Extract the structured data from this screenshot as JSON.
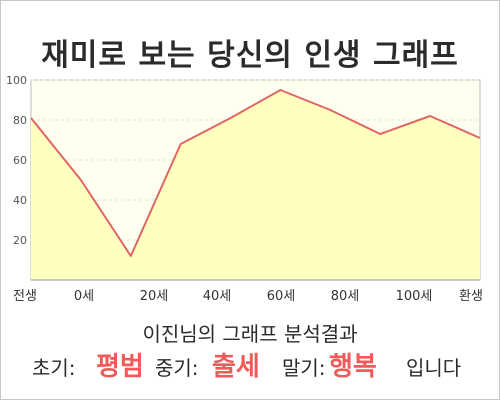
{
  "title": "재미로 보는 당신의 인생 그래프",
  "chart_data": {
    "type": "area",
    "x_labels": [
      "전생",
      "0세",
      "20세",
      "40세",
      "60세",
      "80세",
      "100세",
      "환생"
    ],
    "y_ticks": [
      20,
      40,
      60,
      80,
      100
    ],
    "ylim": [
      0,
      100
    ],
    "points": [
      81,
      50,
      12,
      68,
      81,
      95,
      85,
      73,
      82,
      71
    ],
    "colors": {
      "line": "#e06666",
      "fill": "#ffffc0",
      "plot_bg": "#fffff0"
    },
    "grid": true
  },
  "summary": {
    "heading": "이진님의 그래프 분석결과",
    "early_label": "초기:",
    "early_value": "평범",
    "middle_label": "중기:",
    "middle_value": "출세",
    "late_label": "말기:",
    "late_value": "행복",
    "suffix": "입니다"
  }
}
